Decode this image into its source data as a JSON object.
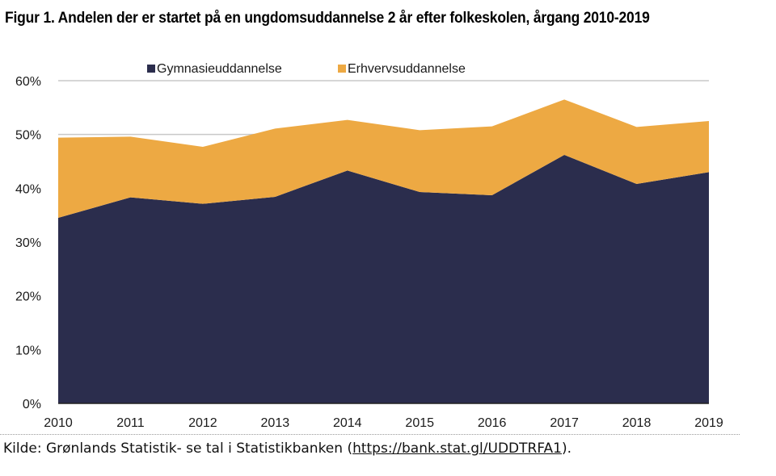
{
  "figure": {
    "title": "Figur 1. Andelen der er startet på en ungdomsuddannelse 2 år efter folkeskolen, årgang 2010-2019"
  },
  "source": {
    "prefix": "Kilde: Grønlands Statistik- se tal i Statistikbanken (",
    "link_text": "https://bank.stat.gl/UDDTRFA1",
    "suffix": ")."
  },
  "colors": {
    "gymnasie": "#2b2d4d",
    "erhverv": "#eda943",
    "grid": "#c8c8c8",
    "axis": "#222222"
  },
  "chart_data": {
    "type": "area",
    "stacked": true,
    "categories": [
      "2010",
      "2011",
      "2012",
      "2013",
      "2014",
      "2015",
      "2016",
      "2017",
      "2018",
      "2019"
    ],
    "series": [
      {
        "name": "Gymnasieuddannelse",
        "values": [
          34.5,
          38.3,
          37.1,
          38.4,
          43.3,
          39.3,
          38.7,
          46.2,
          40.8,
          43.0
        ]
      },
      {
        "name": "Erhvervsuddannelse",
        "values": [
          14.9,
          11.3,
          10.6,
          12.7,
          9.4,
          11.5,
          12.8,
          10.3,
          10.6,
          9.5
        ]
      }
    ],
    "ylim": [
      0,
      60
    ],
    "yticks": [
      "0%",
      "10%",
      "20%",
      "30%",
      "40%",
      "50%",
      "60%"
    ],
    "ytick_values": [
      0,
      10,
      20,
      30,
      40,
      50,
      60
    ],
    "grid": "y",
    "legend_position": "top"
  }
}
